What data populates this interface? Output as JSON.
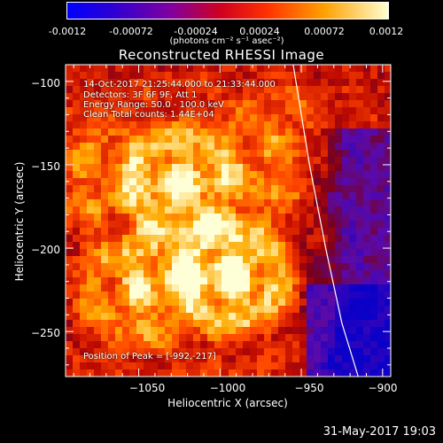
{
  "colorbar": {
    "ticks": [
      "-0.0012",
      "-0.00072",
      "-0.00024",
      "0.00024",
      "0.00072",
      "0.0012"
    ],
    "units": "(photons cm⁻² s⁻¹ asec⁻²)",
    "colors": [
      "#0000d0",
      "#5000a0",
      "#c00010",
      "#ff3000",
      "#ffb000",
      "#ffffe0"
    ]
  },
  "chart_data": {
    "type": "heatmap",
    "title": "Reconstructed RHESSI Image",
    "xlabel": "Heliocentric X (arcsec)",
    "ylabel": "Heliocentric Y (arcsec)",
    "xlim": [
      -1095,
      -895
    ],
    "ylim": [
      -277,
      -90
    ],
    "x_ticks": [
      -1050,
      -1000,
      -950,
      -900
    ],
    "y_ticks": [
      -100,
      -150,
      -200,
      -250
    ],
    "x_tick_labels": [
      "−1050",
      "−1000",
      "−950",
      "−900"
    ],
    "y_tick_labels": [
      "−100",
      "−150",
      "−200",
      "−250"
    ],
    "colorbar_range": [
      -0.0012,
      0.0012
    ],
    "sources": [
      {
        "x": -992,
        "y": -217,
        "intensity": 1.0
      },
      {
        "x": -1025,
        "y": -160,
        "intensity": 0.85
      },
      {
        "x": -1050,
        "y": -225,
        "intensity": 0.7
      },
      {
        "x": -965,
        "y": -140,
        "intensity": 0.45
      },
      {
        "x": -1080,
        "y": -150,
        "intensity": 0.4
      }
    ],
    "limb_curve": {
      "x": [
        -955,
        -945,
        -935,
        -925,
        -915
      ],
      "y": [
        -90,
        -150,
        -200,
        -245,
        -277
      ]
    },
    "annotations": [
      "14-Oct-2017 21:25:44.000 to 21:33:44.000",
      "Detectors: 3F 6F 9F, Att 1",
      "Energy Range: 50.0 - 100.0 keV",
      "Clean     Total counts: 1.44E+04"
    ],
    "peak_label": "Position of Peak = [-992,-217]",
    "grid": false
  },
  "footer": "31-May-2017 19:03"
}
